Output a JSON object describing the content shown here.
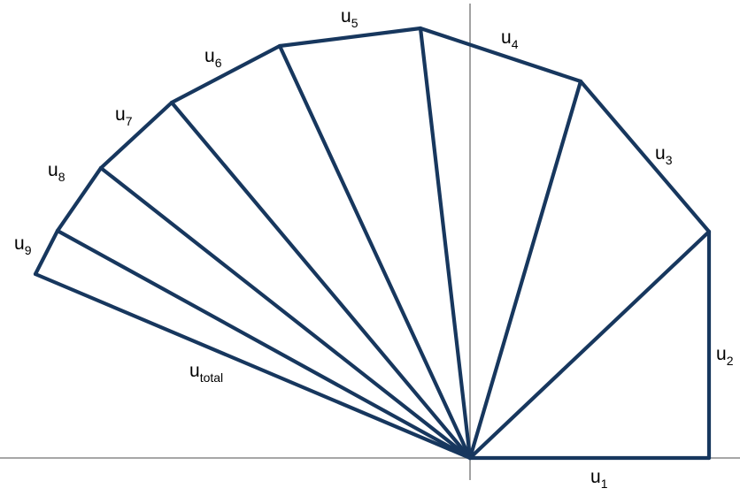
{
  "figure": {
    "stroke_color": "#17375e",
    "axis_color": "#8a8a8a",
    "background": "#ffffff"
  },
  "labels": {
    "u1": {
      "base": "u",
      "sub": "1"
    },
    "u2": {
      "base": "u",
      "sub": "2"
    },
    "u3": {
      "base": "u",
      "sub": "3"
    },
    "u4": {
      "base": "u",
      "sub": "4"
    },
    "u5": {
      "base": "u",
      "sub": "5"
    },
    "u6": {
      "base": "u",
      "sub": "6"
    },
    "u7": {
      "base": "u",
      "sub": "7"
    },
    "u8": {
      "base": "u",
      "sub": "8"
    },
    "u9": {
      "base": "u",
      "sub": "9"
    },
    "utotal": {
      "base": "u",
      "sub": "total"
    }
  }
}
